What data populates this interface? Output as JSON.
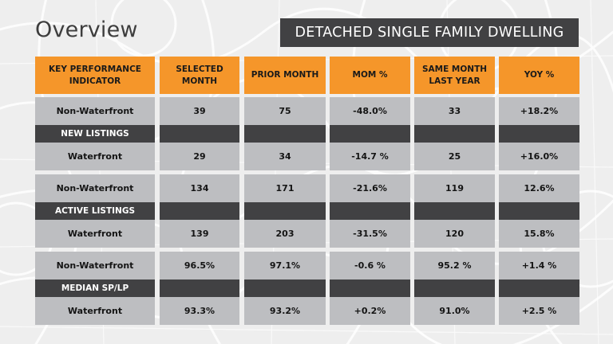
{
  "page": {
    "title": "Overview",
    "badge": "DETACHED SINGLE FAMILY DWELLING"
  },
  "colors": {
    "header": "#f5962a",
    "group_label": "#414143",
    "value_cell": "#bdbec1",
    "background": "#eeeeee"
  },
  "table": {
    "headers": [
      "KEY PERFORMANCE INDICATOR",
      "SELECTED MONTH",
      "PRIOR MONTH",
      "MOM %",
      "SAME MONTH LAST YEAR",
      "YOY %"
    ],
    "groups": [
      {
        "label": "NEW LISTINGS",
        "rows": [
          {
            "indicator": "Non-Waterfront",
            "selected_month": "39",
            "prior_month": "75",
            "mom": "-48.0%",
            "same_month_last_year": "33",
            "yoy": "+18.2%"
          },
          {
            "indicator": "Waterfront",
            "selected_month": "29",
            "prior_month": "34",
            "mom": "-14.7 %",
            "same_month_last_year": "25",
            "yoy": "+16.0%"
          }
        ]
      },
      {
        "label": "ACTIVE LISTINGS",
        "rows": [
          {
            "indicator": "Non-Waterfront",
            "selected_month": "134",
            "prior_month": "171",
            "mom": "-21.6%",
            "same_month_last_year": "119",
            "yoy": "12.6%"
          },
          {
            "indicator": "Waterfront",
            "selected_month": "139",
            "prior_month": "203",
            "mom": "-31.5%",
            "same_month_last_year": "120",
            "yoy": "15.8%"
          }
        ]
      },
      {
        "label": "MEDIAN SP/LP",
        "rows": [
          {
            "indicator": "Non-Waterfront",
            "selected_month": "96.5%",
            "prior_month": "97.1%",
            "mom": "-0.6 %",
            "same_month_last_year": "95.2 %",
            "yoy": "+1.4 %"
          },
          {
            "indicator": "Waterfront",
            "selected_month": "93.3%",
            "prior_month": "93.2%",
            "mom": "+0.2%",
            "same_month_last_year": "91.0%",
            "yoy": "+2.5 %"
          }
        ]
      }
    ]
  }
}
